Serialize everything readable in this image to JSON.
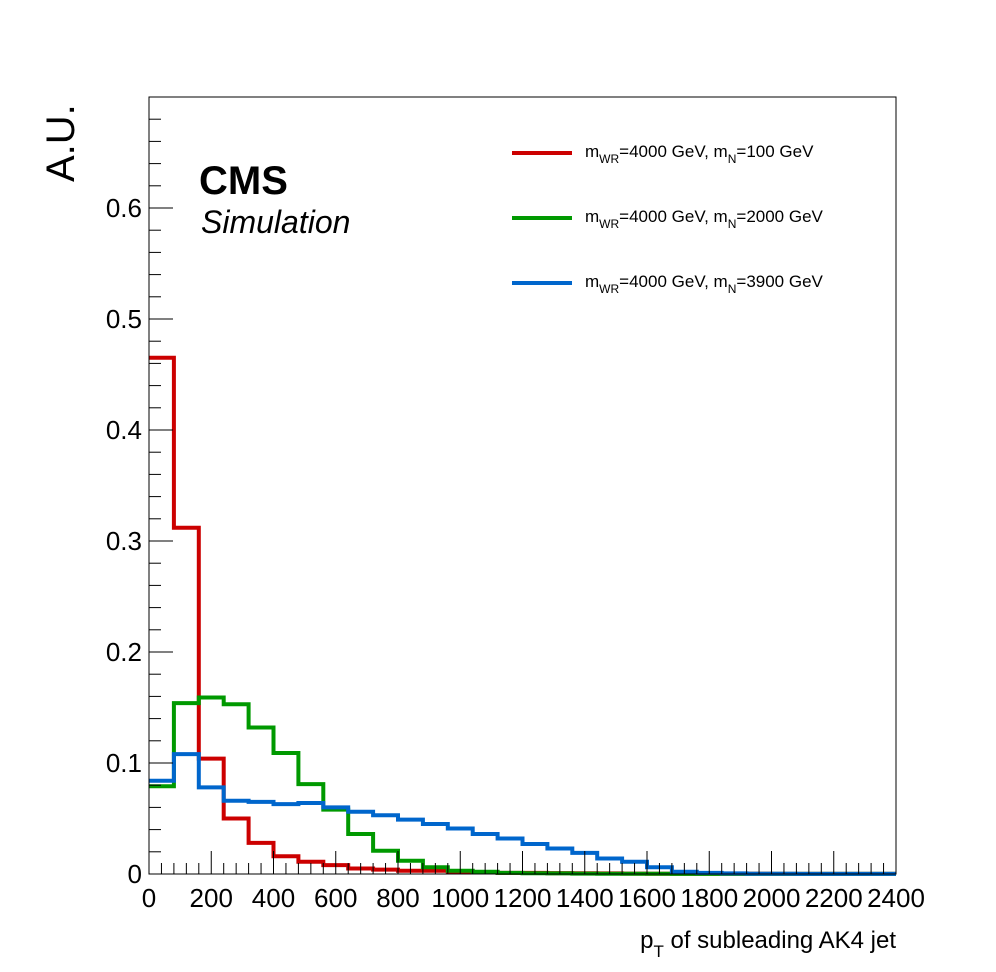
{
  "chart_data": {
    "type": "line",
    "style": "step-histogram",
    "xlabel": "p_T of subleading AK4 jet",
    "xlabel_main": "p",
    "xlabel_sub": "T",
    "xlabel_rest": " of subleading AK4 jet",
    "ylabel": "A.U.",
    "xlim": [
      0,
      2400
    ],
    "ylim": [
      0,
      0.7
    ],
    "x_ticks": [
      0,
      200,
      400,
      600,
      800,
      1000,
      1200,
      1400,
      1600,
      1800,
      2000,
      2200,
      2400
    ],
    "x_tick_labels": [
      "0",
      "200",
      "400",
      "600",
      "800",
      "1000",
      "1200",
      "1400",
      "1600",
      "1800",
      "2000",
      "2200",
      "2400"
    ],
    "y_ticks": [
      0,
      0.1,
      0.2,
      0.3,
      0.4,
      0.5,
      0.6
    ],
    "y_tick_labels": [
      "0",
      "0.1",
      "0.2",
      "0.3",
      "0.4",
      "0.5",
      "0.6"
    ],
    "bin_width": 80,
    "bin_edges_start": 0,
    "grid": false,
    "legend_position": "top-right",
    "annotations": {
      "experiment": "CMS",
      "subtitle": "Simulation"
    },
    "series": [
      {
        "name": "m_WR=4000 GeV, m_N=100 GeV",
        "legend": {
          "m1": "m",
          "s1": "WR",
          "t1": "=4000 GeV, ",
          "m2": "m",
          "s2": "N",
          "t2": "=100 GeV"
        },
        "color": "#cc0000",
        "values": [
          0.465,
          0.312,
          0.104,
          0.05,
          0.028,
          0.016,
          0.011,
          0.008,
          0.005,
          0.004,
          0.003,
          0.003,
          0.002,
          0.0015,
          0.001,
          0.001,
          0.0008,
          0.0006,
          0.0005,
          0.0004,
          0.0003,
          0.0003,
          0.0002,
          0.0002,
          0.0002,
          0.0001,
          0.0001,
          0.0001,
          0.0001,
          0.0001
        ]
      },
      {
        "name": "m_WR=4000 GeV, m_N=2000 GeV",
        "legend": {
          "m1": "m",
          "s1": "WR",
          "t1": "=4000 GeV, ",
          "m2": "m",
          "s2": "N",
          "t2": "=2000 GeV"
        },
        "color": "#009900",
        "values": [
          0.079,
          0.154,
          0.159,
          0.153,
          0.132,
          0.109,
          0.081,
          0.058,
          0.036,
          0.021,
          0.012,
          0.006,
          0.003,
          0.002,
          0.001,
          0.0007,
          0.0005,
          0.0004,
          0.0003,
          0.0002,
          0.0002,
          0.0001,
          0.0001,
          0.0001,
          0.0001,
          0.0001,
          0.0001,
          0.0001,
          0.0001,
          0.0001
        ]
      },
      {
        "name": "m_WR=4000 GeV, m_N=3900 GeV",
        "legend": {
          "m1": "m",
          "s1": "WR",
          "t1": "=4000 GeV, ",
          "m2": "m",
          "s2": "N",
          "t2": "=3900 GeV"
        },
        "color": "#0066cc",
        "values": [
          0.084,
          0.108,
          0.078,
          0.066,
          0.065,
          0.063,
          0.064,
          0.06,
          0.056,
          0.053,
          0.049,
          0.045,
          0.041,
          0.036,
          0.032,
          0.027,
          0.023,
          0.019,
          0.014,
          0.011,
          0.006,
          0.002,
          0.001,
          0.0005,
          0.0003,
          0.0002,
          0.0001,
          0.0001,
          0.0001,
          0.0001
        ]
      }
    ]
  }
}
